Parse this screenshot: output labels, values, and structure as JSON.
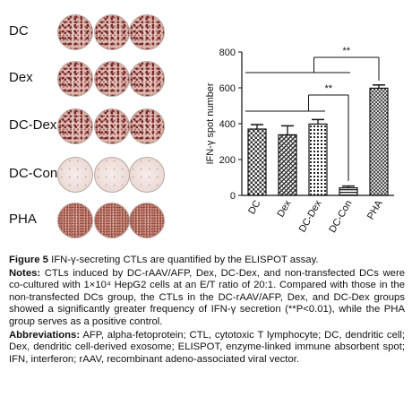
{
  "wells": [
    {
      "label": "DC",
      "density": "dense"
    },
    {
      "label": "Dex",
      "density": "dense"
    },
    {
      "label": "DC-Dex",
      "density": "dense"
    },
    {
      "label": "DC-Con",
      "density": "light"
    },
    {
      "label": "PHA",
      "density": "pha"
    }
  ],
  "chart_data": {
    "type": "bar",
    "categories": [
      "DC",
      "Dex",
      "DC-Dex",
      "DC-Con",
      "PHA"
    ],
    "values": [
      370,
      338,
      398,
      42,
      598
    ],
    "errors": [
      25,
      50,
      25,
      10,
      18
    ],
    "ylabel": "IFN-γ spot number",
    "ylim": [
      0,
      800
    ],
    "yticks": [
      "0",
      "200",
      "400",
      "600",
      "800"
    ],
    "significance": [
      {
        "label": "**",
        "from": "DC-Con",
        "to": "PHA"
      },
      {
        "label": "**",
        "from": "DC-Con",
        "to": "DC-Dex"
      }
    ],
    "colors": {
      "bar_edge": "#111111",
      "pattern": "#222222"
    }
  },
  "caption": {
    "figure_label": "Figure 5",
    "title": "IFN-γ-secreting CTLs are quantified by the ELISPOT assay.",
    "notes_label": "Notes:",
    "notes": "CTLs induced by DC-rAAV/AFP, Dex, DC-Dex, and non-transfected DCs were co-cultured with 1×10⁴ HepG2 cells at an E/T ratio of 20:1. Compared with those in the non-transfected DCs group, the CTLs in the DC-rAAV/AFP, Dex, and DC-Dex groups showed a significantly greater frequency of IFN-γ secretion (**P<0.01), while the PHA group serves as a positive control.",
    "abbrev_label": "Abbreviations:",
    "abbreviations": "AFP, alpha-fetoprotein; CTL, cytotoxic T lymphocyte; DC, dendritic cell; Dex, dendritic cell-derived exosome; ELISPOT, enzyme-linked immune absorbent spot; IFN, interferon; rAAV, recombinant adeno-associated viral vector."
  }
}
